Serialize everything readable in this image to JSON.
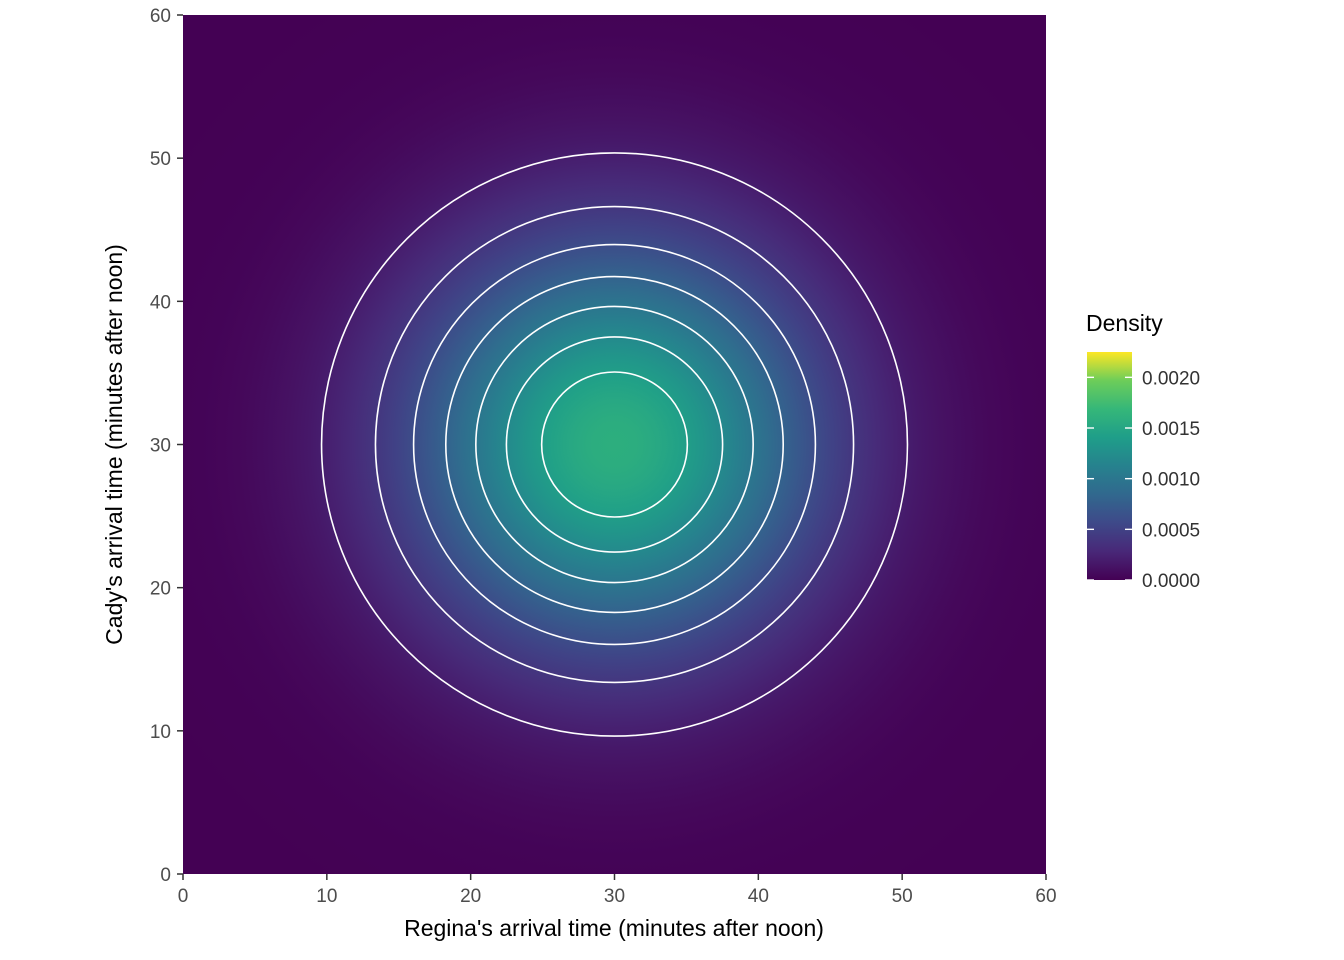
{
  "chart_data": {
    "type": "heatmap",
    "subtype": "bivariate-density-with-contours",
    "title": "",
    "xlabel": "Regina's arrival time (minutes after noon)",
    "ylabel": "Cady's arrival time (minutes after noon)",
    "xlim": [
      0,
      60
    ],
    "ylim": [
      0,
      60
    ],
    "x_ticks": [
      0,
      10,
      20,
      30,
      40,
      50,
      60
    ],
    "y_ticks": [
      0,
      10,
      20,
      30,
      40,
      50,
      60
    ],
    "grid": false,
    "legend_position": "right",
    "distribution": "bivariate_normal",
    "center": [
      30,
      30
    ],
    "sigma": 10,
    "peak_density": 0.00159155,
    "color_scale_max": 0.00225,
    "contour_levels": [
      0.0002,
      0.0004,
      0.0006,
      0.0008,
      0.001,
      0.0012,
      0.0014
    ],
    "contour_color": "#FFFFFF",
    "colormap_name": "viridis",
    "colormap": [
      "#440154",
      "#482878",
      "#3E4989",
      "#31688E",
      "#26828E",
      "#1F9E89",
      "#35B779",
      "#6DCD59",
      "#FDE725"
    ],
    "legend": {
      "title": "Density",
      "tick_labels": [
        "0.0020",
        "0.0015",
        "0.0010",
        "0.0005",
        "0.0000"
      ],
      "tick_values": [
        0.002,
        0.0015,
        0.001,
        0.0005,
        0.0
      ],
      "range": [
        0,
        0.00225
      ]
    }
  },
  "styles": {
    "background": "#FFFFFF",
    "tick_mark_color": "#333333",
    "tick_label_color": "#4D4D4D",
    "axis_title_color": "#000000",
    "legend_label_color": "#333333",
    "low_color": "#440154",
    "high_color": "#FDE725"
  }
}
